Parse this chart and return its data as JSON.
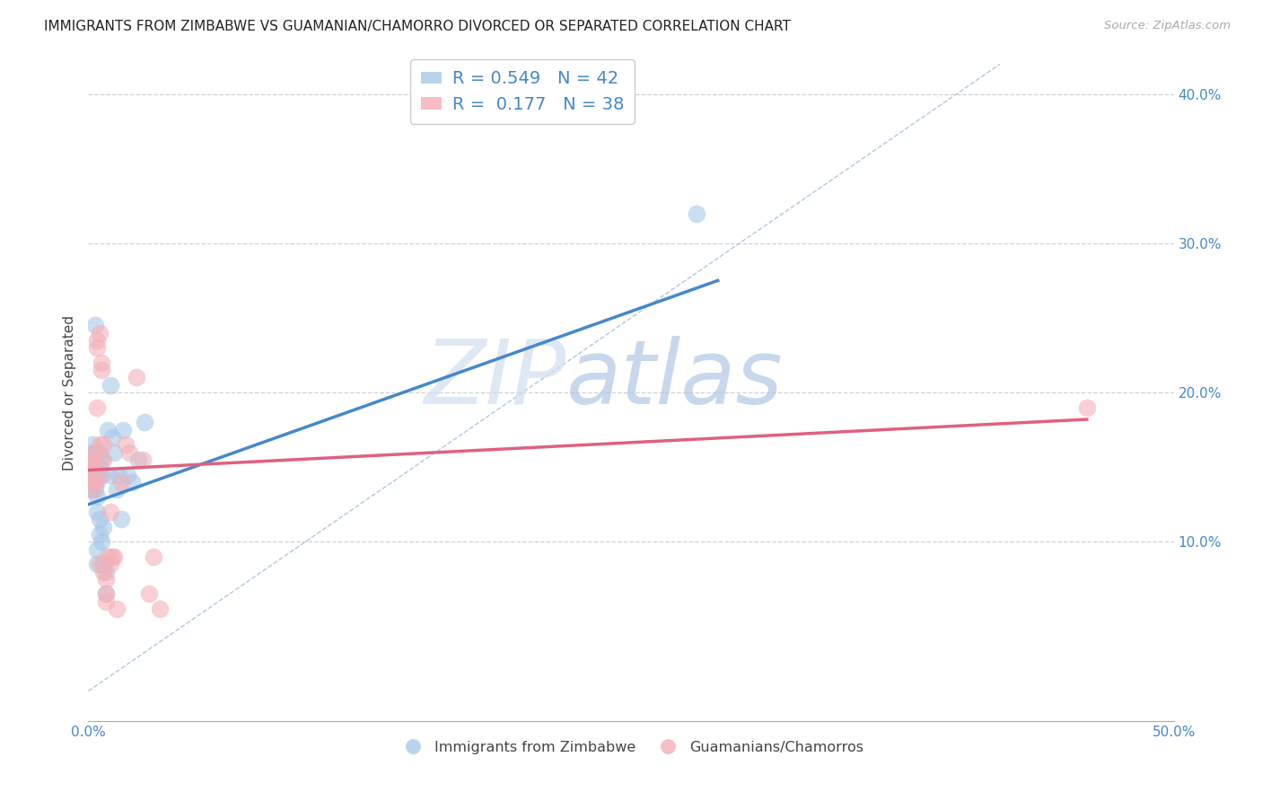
{
  "title": "IMMIGRANTS FROM ZIMBABWE VS GUAMANIAN/CHAMORRO DIVORCED OR SEPARATED CORRELATION CHART",
  "source": "Source: ZipAtlas.com",
  "ylabel": "Divorced or Separated",
  "xmin": 0.0,
  "xmax": 0.5,
  "ymin": -0.02,
  "ymax": 0.42,
  "xticks": [
    0.0,
    0.1,
    0.2,
    0.3,
    0.4,
    0.5
  ],
  "xtick_labels": [
    "0.0%",
    "",
    "",
    "",
    "",
    "50.0%"
  ],
  "yticks": [
    0.0,
    0.1,
    0.2,
    0.3,
    0.4
  ],
  "ytick_labels": [
    "",
    "10.0%",
    "20.0%",
    "30.0%",
    "40.0%"
  ],
  "legend_r1": "R = 0.549",
  "legend_n1": "N = 42",
  "legend_r2": "R =  0.177",
  "legend_n2": "N = 38",
  "blue_color": "#a8c8e8",
  "pink_color": "#f4b0b8",
  "line_blue": "#4488cc",
  "line_pink": "#e06080",
  "diagonal_color": "#b0c8e0",
  "watermark_zip": "ZIP",
  "watermark_atlas": "atlas",
  "blue_scatter_x": [
    0.001,
    0.001,
    0.002,
    0.002,
    0.002,
    0.002,
    0.003,
    0.003,
    0.003,
    0.003,
    0.003,
    0.004,
    0.004,
    0.004,
    0.004,
    0.004,
    0.005,
    0.005,
    0.005,
    0.005,
    0.006,
    0.006,
    0.006,
    0.007,
    0.007,
    0.008,
    0.008,
    0.009,
    0.01,
    0.01,
    0.011,
    0.012,
    0.013,
    0.014,
    0.015,
    0.016,
    0.018,
    0.02,
    0.023,
    0.026,
    0.003,
    0.28
  ],
  "blue_scatter_y": [
    0.135,
    0.145,
    0.155,
    0.16,
    0.165,
    0.14,
    0.135,
    0.15,
    0.145,
    0.155,
    0.16,
    0.13,
    0.12,
    0.14,
    0.095,
    0.085,
    0.105,
    0.115,
    0.16,
    0.15,
    0.155,
    0.145,
    0.1,
    0.11,
    0.085,
    0.08,
    0.065,
    0.175,
    0.205,
    0.145,
    0.17,
    0.16,
    0.135,
    0.145,
    0.115,
    0.175,
    0.145,
    0.14,
    0.155,
    0.18,
    0.245,
    0.32
  ],
  "pink_scatter_x": [
    0.001,
    0.001,
    0.002,
    0.002,
    0.002,
    0.003,
    0.003,
    0.003,
    0.004,
    0.004,
    0.004,
    0.005,
    0.005,
    0.005,
    0.005,
    0.006,
    0.006,
    0.007,
    0.007,
    0.007,
    0.008,
    0.008,
    0.008,
    0.009,
    0.01,
    0.01,
    0.011,
    0.012,
    0.013,
    0.015,
    0.017,
    0.019,
    0.022,
    0.025,
    0.028,
    0.03,
    0.033,
    0.46
  ],
  "pink_scatter_y": [
    0.155,
    0.145,
    0.155,
    0.135,
    0.14,
    0.15,
    0.16,
    0.14,
    0.23,
    0.235,
    0.19,
    0.24,
    0.165,
    0.145,
    0.085,
    0.22,
    0.215,
    0.155,
    0.165,
    0.08,
    0.06,
    0.065,
    0.075,
    0.09,
    0.12,
    0.085,
    0.09,
    0.09,
    0.055,
    0.14,
    0.165,
    0.16,
    0.21,
    0.155,
    0.065,
    0.09,
    0.055,
    0.19
  ],
  "blue_line_x": [
    0.0,
    0.29
  ],
  "blue_line_y": [
    0.125,
    0.275
  ],
  "pink_line_x": [
    0.0,
    0.46
  ],
  "pink_line_y": [
    0.148,
    0.182
  ],
  "diag_line_x": [
    0.0,
    0.42
  ],
  "diag_line_y": [
    0.0,
    0.42
  ]
}
